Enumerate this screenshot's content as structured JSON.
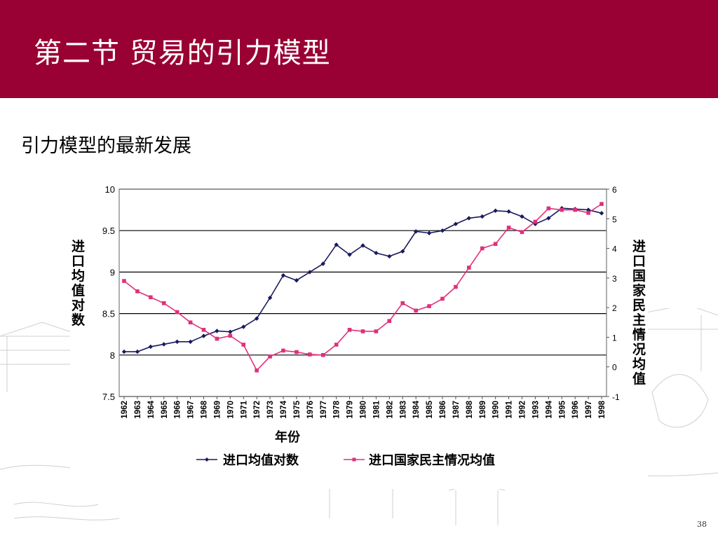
{
  "slide": {
    "title": "第二节 贸易的引力模型",
    "subtitle": "引力模型的最新发展",
    "page_number": "38"
  },
  "colors": {
    "header": "#990033",
    "series_1": "#1a1a5e",
    "series_2": "#e0307a"
  },
  "chart_data": {
    "type": "line",
    "title": "",
    "xlabel": "年份",
    "ylabel_left": "进口均值对数",
    "ylabel_right": "进口国家民主情况均值",
    "x": [
      "1962",
      "1963",
      "1964",
      "1965",
      "1966",
      "1967",
      "1968",
      "1969",
      "1970",
      "1971",
      "1972",
      "1973",
      "1974",
      "1975",
      "1976",
      "1977",
      "1978",
      "1979",
      "1980",
      "1981",
      "1982",
      "1983",
      "1984",
      "1985",
      "1986",
      "1987",
      "1988",
      "1989",
      "1990",
      "1991",
      "1992",
      "1993",
      "1994",
      "1995",
      "1996",
      "1997",
      "1998"
    ],
    "ylim_left": [
      7.5,
      10
    ],
    "yticks_left": [
      "7.5",
      "8",
      "8.5",
      "9",
      "9.5",
      "10"
    ],
    "ylim_right": [
      -1,
      6
    ],
    "yticks_right": [
      "-1",
      "0",
      "1",
      "2",
      "3",
      "4",
      "5",
      "6"
    ],
    "grid": "horizontal",
    "legend_position": "bottom",
    "series": [
      {
        "name": "进口均值对数",
        "axis": "left",
        "marker": "diamond",
        "values": [
          8.04,
          8.04,
          8.1,
          8.13,
          8.16,
          8.16,
          8.23,
          8.29,
          8.28,
          8.34,
          8.44,
          8.69,
          8.96,
          8.9,
          9.0,
          9.1,
          9.33,
          9.21,
          9.32,
          9.23,
          9.19,
          9.25,
          9.49,
          9.47,
          9.5,
          9.58,
          9.65,
          9.67,
          9.74,
          9.73,
          9.67,
          9.58,
          9.65,
          9.77,
          9.76,
          9.75,
          9.71
        ]
      },
      {
        "name": "进口国家民主情况均值",
        "axis": "right",
        "marker": "square",
        "values": [
          2.9,
          2.55,
          2.35,
          2.15,
          1.85,
          1.5,
          1.25,
          0.95,
          1.05,
          0.75,
          -0.12,
          0.35,
          0.55,
          0.5,
          0.42,
          0.4,
          0.75,
          1.25,
          1.2,
          1.2,
          1.55,
          2.15,
          1.9,
          2.05,
          2.3,
          2.7,
          3.35,
          4.0,
          4.15,
          4.7,
          4.55,
          4.9,
          5.35,
          5.3,
          5.3,
          5.2,
          5.5
        ]
      }
    ]
  }
}
